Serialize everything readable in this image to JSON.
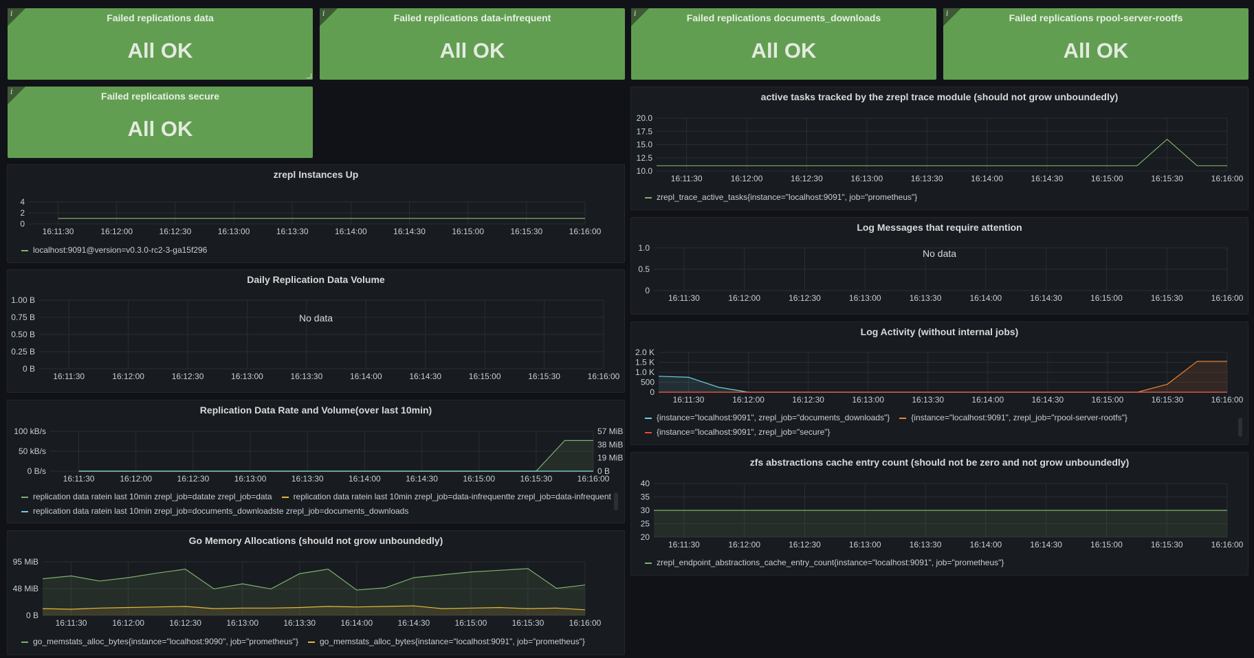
{
  "stats": [
    {
      "title": "Failed replications data",
      "value": "All OK"
    },
    {
      "title": "Failed replications data-infrequent",
      "value": "All OK"
    },
    {
      "title": "Failed replications documents_downloads",
      "value": "All OK"
    },
    {
      "title": "Failed replications rpool-server-rootfs",
      "value": "All OK"
    },
    {
      "title": "Failed replications secure",
      "value": "All OK"
    }
  ],
  "info_icon": "info-icon",
  "time_ticks": [
    "16:11:30",
    "16:12:00",
    "16:12:30",
    "16:13:00",
    "16:13:30",
    "16:14:00",
    "16:14:30",
    "16:15:00",
    "16:15:30",
    "16:16:00"
  ],
  "panels": {
    "instances": {
      "title": "zrepl Instances Up",
      "y_ticks": [
        "4",
        "2",
        "0"
      ],
      "legend": [
        {
          "label": "localhost:9091@version=v0.3.0-rc2-3-ga15f296",
          "color": "#7eb26d"
        }
      ]
    },
    "daily": {
      "title": "Daily Replication Data Volume",
      "y_ticks": [
        "1.00 B",
        "0.75 B",
        "0.50 B",
        "0.25 B",
        "0 B"
      ],
      "no_data": "No data"
    },
    "rate": {
      "title": "Replication Data Rate and Volume(over last 10min)",
      "y_ticks": [
        "100 kB/s",
        "50 kB/s",
        "0 B/s"
      ],
      "y2_ticks": [
        "57 MiB",
        "38 MiB",
        "19 MiB",
        "0 B"
      ],
      "legend": [
        {
          "label": "replication data ratein last 10min zrepl_job=datate zrepl_job=data",
          "color": "#7eb26d"
        },
        {
          "label": "replication data ratein last 10min zrepl_job=data-infrequentte zrepl_job=data-infrequent",
          "color": "#eab839"
        },
        {
          "label": "replication data ratein last 10min zrepl_job=documents_downloadste zrepl_job=documents_downloads",
          "color": "#6ed0e0"
        }
      ]
    },
    "gomem": {
      "title": "Go Memory Allocations (should not grow unboundedly)",
      "y_ticks": [
        "95 MiB",
        "48 MiB",
        "0 B"
      ],
      "legend": [
        {
          "label": "go_memstats_alloc_bytes{instance=\"localhost:9090\", job=\"prometheus\"}",
          "color": "#7eb26d"
        },
        {
          "label": "go_memstats_alloc_bytes{instance=\"localhost:9091\", job=\"prometheus\"}",
          "color": "#eab839"
        }
      ]
    },
    "tasks": {
      "title": "active tasks tracked by the zrepl trace module (should not grow unboundedly)",
      "y_ticks": [
        "20.0",
        "17.5",
        "15.0",
        "12.5",
        "10.0"
      ],
      "legend": [
        {
          "label": "zrepl_trace_active_tasks{instance=\"localhost:9091\", job=\"prometheus\"}",
          "color": "#7eb26d"
        }
      ]
    },
    "logmsg": {
      "title": "Log Messages that require attention",
      "y_ticks": [
        "1.0",
        "0.5",
        "0"
      ],
      "no_data": "No data"
    },
    "logact": {
      "title": "Log Activity (without internal jobs)",
      "y_ticks": [
        "2.0 K",
        "1.5 K",
        "1.0 K",
        "500",
        "0"
      ],
      "legend": [
        {
          "label": "{instance=\"localhost:9091\", zrepl_job=\"documents_downloads\"}",
          "color": "#6ed0e0"
        },
        {
          "label": "{instance=\"localhost:9091\", zrepl_job=\"rpool-server-rootfs\"}",
          "color": "#ef843c"
        },
        {
          "label": "{instance=\"localhost:9091\", zrepl_job=\"secure\"}",
          "color": "#e24d42"
        }
      ]
    },
    "zfs": {
      "title": "zfs abstractions cache entry count (should not be zero and not grow unboundedly)",
      "y_ticks": [
        "40",
        "35",
        "30",
        "25",
        "20"
      ],
      "legend": [
        {
          "label": "zrepl_endpoint_abstractions_cache_entry_count{instance=\"localhost:9091\", job=\"prometheus\"}",
          "color": "#7eb26d"
        }
      ]
    }
  },
  "chart_data": [
    {
      "title": "zrepl Instances Up",
      "type": "line",
      "ylim": [
        0,
        4
      ],
      "x": [
        "16:11:30",
        "16:12:00",
        "16:12:30",
        "16:13:00",
        "16:13:30",
        "16:14:00",
        "16:14:30",
        "16:15:00",
        "16:15:30",
        "16:16:00"
      ],
      "series": [
        {
          "name": "localhost:9091@version=v0.3.0-rc2-3-ga15f296",
          "color": "#7eb26d",
          "values": [
            1,
            1,
            1,
            1,
            1,
            1,
            1,
            1,
            1,
            1
          ]
        }
      ]
    },
    {
      "title": "Daily Replication Data Volume",
      "type": "line",
      "ylim": [
        0,
        1
      ],
      "series": []
    },
    {
      "title": "Replication Data Rate and Volume(over last 10min)",
      "type": "area",
      "ylim": [
        0,
        100
      ],
      "y2lim": [
        0,
        57
      ],
      "x": [
        "16:11:30",
        "16:12:00",
        "16:12:30",
        "16:13:00",
        "16:13:30",
        "16:14:00",
        "16:14:30",
        "16:15:00",
        "16:15:30",
        "16:15:45",
        "16:16:00"
      ],
      "series": [
        {
          "name": "replication data ratein last 10min zrepl_job=datate zrepl_job=data",
          "color": "#7eb26d",
          "values": [
            0,
            0,
            0,
            0,
            0,
            0,
            0,
            0,
            0,
            77,
            77
          ]
        },
        {
          "name": "replication data ratein last 10min zrepl_job=data-infrequentte zrepl_job=data-infrequent",
          "color": "#eab839",
          "values": [
            0,
            0,
            0,
            0,
            0,
            0,
            0,
            0,
            0,
            0,
            0
          ]
        },
        {
          "name": "replication data ratein last 10min zrepl_job=documents_downloadste zrepl_job=documents_downloads",
          "color": "#6ed0e0",
          "values": [
            0,
            0,
            0,
            0,
            0,
            0,
            0,
            0,
            0,
            0,
            0
          ]
        }
      ]
    },
    {
      "title": "Go Memory Allocations (should not grow unboundedly)",
      "type": "area",
      "ylim": [
        0,
        95
      ],
      "x": [
        "16:11:15",
        "16:11:30",
        "16:11:45",
        "16:12:00",
        "16:12:15",
        "16:12:30",
        "16:12:45",
        "16:13:00",
        "16:13:15",
        "16:13:30",
        "16:13:45",
        "16:14:00",
        "16:14:15",
        "16:14:30",
        "16:14:45",
        "16:15:00",
        "16:15:15",
        "16:15:30",
        "16:15:45",
        "16:16:00"
      ],
      "series": [
        {
          "name": "go_memstats_alloc_bytes{instance=\"localhost:9090\", job=\"prometheus\"}",
          "color": "#7eb26d",
          "values": [
            65,
            70,
            61,
            67,
            75,
            82,
            47,
            56,
            47,
            74,
            82,
            45,
            49,
            67,
            72,
            77,
            80,
            83,
            48,
            54
          ]
        },
        {
          "name": "go_memstats_alloc_bytes{instance=\"localhost:9091\", job=\"prometheus\"}",
          "color": "#eab839",
          "values": [
            12,
            11,
            13,
            14,
            15,
            16,
            12,
            13,
            13,
            14,
            16,
            15,
            16,
            17,
            12,
            13,
            14,
            12,
            13,
            10
          ]
        }
      ]
    },
    {
      "title": "active tasks tracked by the zrepl trace module (should not grow unboundedly)",
      "type": "line",
      "ylim": [
        10,
        20
      ],
      "x": [
        "16:11:15",
        "16:11:30",
        "16:12:00",
        "16:12:30",
        "16:13:00",
        "16:13:30",
        "16:14:00",
        "16:14:30",
        "16:15:00",
        "16:15:15",
        "16:15:30",
        "16:15:45",
        "16:16:00"
      ],
      "series": [
        {
          "name": "zrepl_trace_active_tasks{instance=\"localhost:9091\", job=\"prometheus\"}",
          "color": "#7eb26d",
          "values": [
            11,
            11,
            11,
            11,
            11,
            11,
            11,
            11,
            11,
            11,
            16,
            11,
            11
          ]
        }
      ]
    },
    {
      "title": "Log Messages that require attention",
      "type": "line",
      "ylim": [
        0,
        1
      ],
      "series": []
    },
    {
      "title": "Log Activity (without internal jobs)",
      "type": "area",
      "ylim": [
        0,
        2000
      ],
      "x": [
        "16:11:15",
        "16:11:30",
        "16:11:45",
        "16:12:00",
        "16:12:30",
        "16:13:00",
        "16:13:30",
        "16:14:00",
        "16:14:30",
        "16:15:00",
        "16:15:15",
        "16:15:30",
        "16:15:45",
        "16:16:00"
      ],
      "series": [
        {
          "name": "{instance=\"localhost:9091\", zrepl_job=\"documents_downloads\"}",
          "color": "#6ed0e0",
          "values": [
            800,
            750,
            250,
            0,
            0,
            0,
            0,
            0,
            0,
            0,
            0,
            0,
            0,
            0
          ]
        },
        {
          "name": "{instance=\"localhost:9091\", zrepl_job=\"rpool-server-rootfs\"}",
          "color": "#ef843c",
          "values": [
            0,
            0,
            0,
            0,
            0,
            0,
            0,
            0,
            0,
            0,
            0,
            400,
            1550,
            1550
          ]
        },
        {
          "name": "{instance=\"localhost:9091\", zrepl_job=\"secure\"}",
          "color": "#e24d42",
          "values": [
            0,
            0,
            0,
            0,
            0,
            0,
            0,
            0,
            0,
            0,
            0,
            0,
            0,
            0
          ]
        }
      ]
    },
    {
      "title": "zfs abstractions cache entry count (should not be zero and not grow unboundedly)",
      "type": "area",
      "ylim": [
        20,
        40
      ],
      "x": [
        "16:11:15",
        "16:16:00"
      ],
      "series": [
        {
          "name": "zrepl_endpoint_abstractions_cache_entry_count{instance=\"localhost:9091\", job=\"prometheus\"}",
          "color": "#7eb26d",
          "values": [
            30,
            30
          ]
        }
      ]
    }
  ]
}
